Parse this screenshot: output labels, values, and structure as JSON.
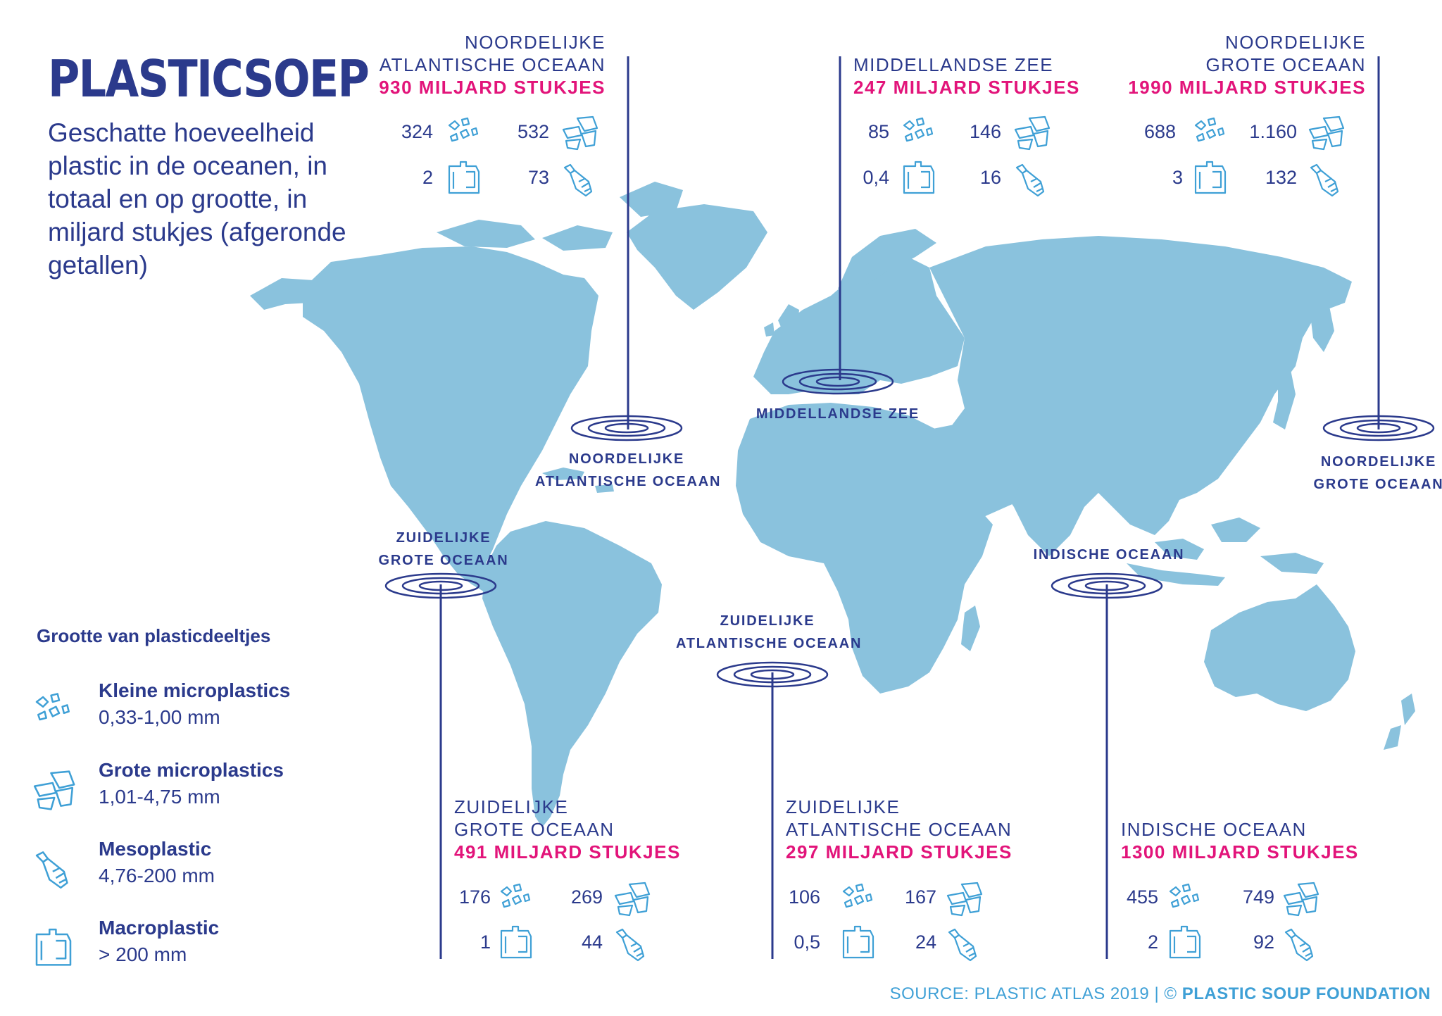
{
  "title": "PLASTICSOEP",
  "subtitle": "Geschatte hoeveelheid plastic in de oceanen, in totaal en op grootte, in miljard stukjes (afgeronde getallen)",
  "colors": {
    "navy": "#2b3a8c",
    "magenta": "#e2147a",
    "land": "#8ac2dd",
    "icon": "#3fa0d6"
  },
  "legend": {
    "title": "Grootte van plasticdeeltjes",
    "items": [
      {
        "icon": "small-microplastics-icon",
        "name": "Kleine microplastics",
        "size": "0,33-1,00 mm"
      },
      {
        "icon": "large-microplastics-icon",
        "name": "Grote microplastics",
        "size": "1,01-4,75 mm"
      },
      {
        "icon": "mesoplastic-bottle-icon",
        "name": "Mesoplastic",
        "size": "4,76-200 mm"
      },
      {
        "icon": "macroplastic-jerrycan-icon",
        "name": "Macroplastic",
        "size": "> 200 mm"
      }
    ]
  },
  "regions": [
    {
      "name_line1": "NOORDELIJKE",
      "name_line2": "ATLANTISCHE OCEAAN",
      "total": "930 MILJARD STUKJES",
      "stats": {
        "small_micro": "324",
        "large_micro": "532",
        "macro": "2",
        "meso": "73"
      },
      "map_label_line1": "NOORDELIJKE",
      "map_label_line2": "ATLANTISCHE OCEAAN"
    },
    {
      "name_line1": "",
      "name_line2": "MIDDELLANDSE ZEE",
      "total": "247 MILJARD STUKJES",
      "stats": {
        "small_micro": "85",
        "large_micro": "146",
        "macro": "0,4",
        "meso": "16"
      },
      "map_label_line1": "",
      "map_label_line2": "MIDDELLANDSE ZEE"
    },
    {
      "name_line1": "NOORDELIJKE",
      "name_line2": "GROTE OCEAAN",
      "total": "1990 MILJARD STUKJES",
      "stats": {
        "small_micro": "688",
        "large_micro": "1.160",
        "macro": "3",
        "meso": "132"
      },
      "map_label_line1": "NOORDELIJKE",
      "map_label_line2": "GROTE OCEAAN"
    },
    {
      "name_line1": "ZUIDELIJKE",
      "name_line2": "GROTE OCEAAN",
      "total": "491 MILJARD STUKJES",
      "stats": {
        "small_micro": "176",
        "large_micro": "269",
        "macro": "1",
        "meso": "44"
      },
      "map_label_line1": "ZUIDELIJKE",
      "map_label_line2": "GROTE OCEAAN"
    },
    {
      "name_line1": "ZUIDELIJKE",
      "name_line2": "ATLANTISCHE OCEAAN",
      "total": "297 MILJARD STUKJES",
      "stats": {
        "small_micro": "106",
        "large_micro": "167",
        "macro": "0,5",
        "meso": "24"
      },
      "map_label_line1": "ZUIDELIJKE",
      "map_label_line2": "ATLANTISCHE OCEAAN"
    },
    {
      "name_line1": "",
      "name_line2": "INDISCHE OCEAAN",
      "total": "1300 MILJARD STUKJES",
      "stats": {
        "small_micro": "455",
        "large_micro": "749",
        "macro": "2",
        "meso": "92"
      },
      "map_label_line1": "",
      "map_label_line2": "INDISCHE OCEAAN"
    }
  ],
  "source": {
    "prefix": "SOURCE: PLASTIC ATLAS 2019 | © ",
    "org": "PLASTIC SOUP FOUNDATION"
  }
}
